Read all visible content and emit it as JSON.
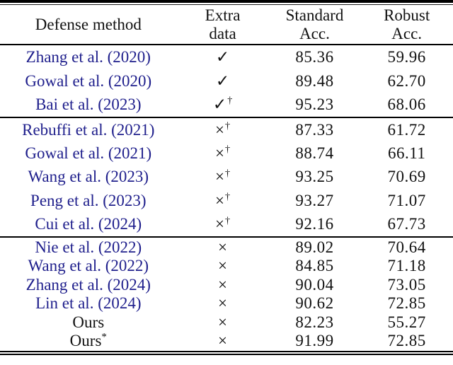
{
  "header": {
    "col1": "Defense method",
    "col2_line1": "Extra",
    "col2_line2": "data",
    "col3_line1": "Standard",
    "col3_line2": "Acc.",
    "col4_line1": "Robust",
    "col4_line2": "Acc."
  },
  "symbols": {
    "check": "✓",
    "cross": "×",
    "dagger": "†",
    "star": "*"
  },
  "colors": {
    "citation_blue": "#1f1f8c",
    "text_black": "#111111",
    "rule_black": "#000000"
  },
  "groups": [
    {
      "rows": [
        {
          "method": "Zhang et al. (2020)",
          "is_citation": true,
          "extra": "check",
          "extra_sup": "",
          "standard": "85.36",
          "robust": "59.96"
        },
        {
          "method": "Gowal et al. (2020)",
          "is_citation": true,
          "extra": "check",
          "extra_sup": "",
          "standard": "89.48",
          "robust": "62.70"
        },
        {
          "method": "Bai et al. (2023)",
          "is_citation": true,
          "extra": "check",
          "extra_sup": "dagger",
          "standard": "95.23",
          "robust": "68.06"
        }
      ]
    },
    {
      "rows": [
        {
          "method": "Rebuffi et al. (2021)",
          "is_citation": true,
          "extra": "cross",
          "extra_sup": "dagger",
          "standard": "87.33",
          "robust": "61.72"
        },
        {
          "method": "Gowal et al. (2021)",
          "is_citation": true,
          "extra": "cross",
          "extra_sup": "dagger",
          "standard": "88.74",
          "robust": "66.11"
        },
        {
          "method": "Wang et al. (2023)",
          "is_citation": true,
          "extra": "cross",
          "extra_sup": "dagger",
          "standard": "93.25",
          "robust": "70.69"
        },
        {
          "method": "Peng et al. (2023)",
          "is_citation": true,
          "extra": "cross",
          "extra_sup": "dagger",
          "standard": "93.27",
          "robust": "71.07"
        },
        {
          "method": "Cui et al. (2024)",
          "is_citation": true,
          "extra": "cross",
          "extra_sup": "dagger",
          "standard": "92.16",
          "robust": "67.73"
        }
      ]
    },
    {
      "rows": [
        {
          "method": "Nie et al. (2022)",
          "is_citation": true,
          "extra": "cross",
          "extra_sup": "",
          "standard": "89.02",
          "robust": "70.64"
        },
        {
          "method": "Wang et al. (2022)",
          "is_citation": true,
          "extra": "cross",
          "extra_sup": "",
          "standard": "84.85",
          "robust": "71.18"
        },
        {
          "method": "Zhang et al. (2024)",
          "is_citation": true,
          "extra": "cross",
          "extra_sup": "",
          "standard": "90.04",
          "robust": "73.05"
        },
        {
          "method": "Lin et al. (2024)",
          "is_citation": true,
          "extra": "cross",
          "extra_sup": "",
          "standard": "90.62",
          "robust": "72.85"
        },
        {
          "method": "Ours",
          "is_citation": false,
          "extra": "cross",
          "extra_sup": "",
          "standard": "82.23",
          "robust": "55.27"
        },
        {
          "method": "Ours",
          "method_sup": "star",
          "is_citation": false,
          "extra": "cross",
          "extra_sup": "",
          "standard": "91.99",
          "robust": "72.85"
        }
      ]
    }
  ]
}
